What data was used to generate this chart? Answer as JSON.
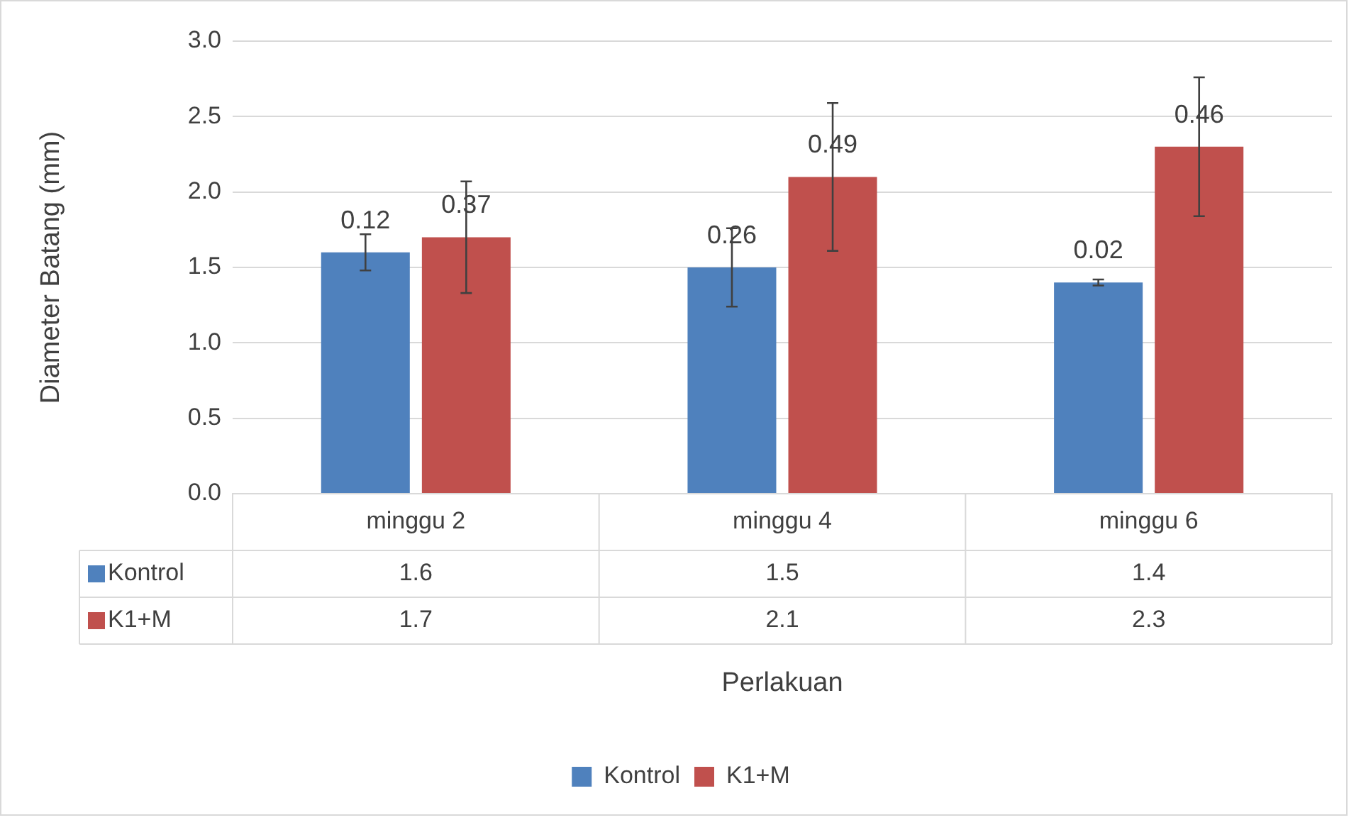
{
  "chart_data": {
    "type": "bar",
    "xlabel": "Perlakuan",
    "ylabel": "Diameter Batang (mm)",
    "categories": [
      "minggu 2",
      "minggu 4",
      "minggu 6"
    ],
    "series": [
      {
        "name": "Kontrol",
        "color": "#4f81bd",
        "values": [
          1.6,
          1.5,
          1.4
        ],
        "errors": [
          0.12,
          0.26,
          0.02
        ]
      },
      {
        "name": "K1+M",
        "color": "#c0504d",
        "values": [
          1.7,
          2.1,
          2.3
        ],
        "errors": [
          0.37,
          0.49,
          0.46
        ]
      }
    ],
    "annotations": [
      "0.12",
      "0.37",
      "0.26",
      "0.49",
      "0.02",
      "0.46"
    ],
    "ylim": [
      0,
      3
    ],
    "yticks": [
      {
        "value": 0,
        "label": "0.0"
      },
      {
        "value": 0.5,
        "label": "0.5"
      },
      {
        "value": 1,
        "label": "1.0"
      },
      {
        "value": 1.5,
        "label": "1.5"
      },
      {
        "value": 2,
        "label": "2.0"
      },
      {
        "value": 2.5,
        "label": "2.5"
      },
      {
        "value": 3,
        "label": "3.0"
      }
    ],
    "grid": "y",
    "legend": "bottom",
    "data_labels": true
  }
}
